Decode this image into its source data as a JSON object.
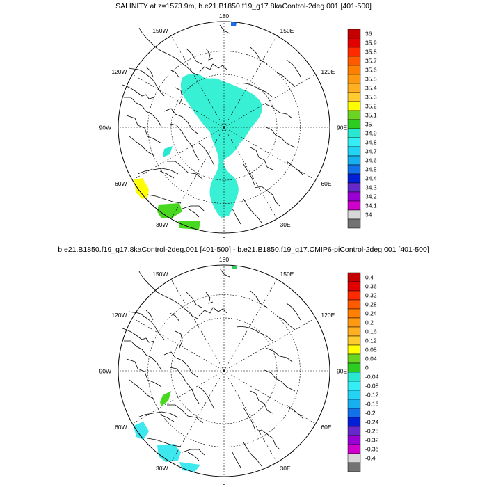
{
  "colors": {
    "land_outline": "#000000",
    "grid": "#000000",
    "ocean": "#ffffff"
  },
  "plots": [
    {
      "id": "top",
      "title": "SALINITY at z=1573.9m, b.e21.B1850.f19_g17.8kaControl-2deg.001 [401-500]",
      "lon_labels": [
        "180",
        "150E",
        "120E",
        "90E",
        "60E",
        "30E",
        "0",
        "30W",
        "60W",
        "90W",
        "120W",
        "150W"
      ],
      "colorbar": {
        "labels": [
          "36",
          "35.9",
          "35.8",
          "35.7",
          "35.6",
          "35.5",
          "35.4",
          "35.3",
          "35.2",
          "35.1",
          "35",
          "34.9",
          "34.8",
          "34.7",
          "34.6",
          "34.5",
          "34.4",
          "34.3",
          "34.2",
          "34.1",
          "34"
        ],
        "colors": [
          "#c40000",
          "#e30000",
          "#ff2a00",
          "#ff5a00",
          "#ff7f00",
          "#ff9a10",
          "#ffb020",
          "#ffcc30",
          "#ffff00",
          "#6ad422",
          "#2ccc20",
          "#29e8d2",
          "#34eef5",
          "#22d3f4",
          "#16b0ef",
          "#1270e8",
          "#0020d8",
          "#6628c8",
          "#9a00d4",
          "#d000cc",
          "#d8d8d8",
          "#737373"
        ]
      },
      "patches": [
        {
          "value": "35",
          "color": "#38f0d3",
          "role": "main-cyan"
        },
        {
          "value": "35.3",
          "color": "#ffff00",
          "role": "labrador"
        },
        {
          "value": "35.2",
          "color": "#48d820",
          "role": "south-green"
        },
        {
          "value": "34.7",
          "color": "#29e8d2",
          "role": "baffin-small"
        },
        {
          "value": "34.5",
          "color": "#1a70e8",
          "role": "top-blue"
        }
      ]
    },
    {
      "id": "bottom",
      "title": "b.e21.B1850.f19_g17.8kaControl-2deg.001 [401-500] - b.e21.B1850.f19_g17.CMIP6-piControl-2deg.001 [401-500]",
      "lon_labels": [
        "180",
        "150E",
        "120E",
        "90E",
        "60E",
        "30E",
        "0",
        "30W",
        "60W",
        "90W",
        "120W",
        "150W"
      ],
      "colorbar": {
        "labels": [
          "0.4",
          "0.36",
          "0.32",
          "0.28",
          "0.24",
          "0.2",
          "0.16",
          "0.12",
          "0.08",
          "0.04",
          "0",
          "-0.04",
          "-0.08",
          "-0.12",
          "-0.16",
          "-0.2",
          "-0.24",
          "-0.28",
          "-0.32",
          "-0.36",
          "-0.4"
        ],
        "colors": [
          "#c40000",
          "#e30000",
          "#ff2a00",
          "#ff5a00",
          "#ff7f00",
          "#ff9a10",
          "#ffb020",
          "#ffcc30",
          "#ffff00",
          "#6ad422",
          "#2ccc20",
          "#29e8d2",
          "#34eef5",
          "#22d3f4",
          "#16b0ef",
          "#1270e8",
          "#0020d8",
          "#6628c8",
          "#9a00d4",
          "#d000cc",
          "#d8d8d8",
          "#737373"
        ]
      },
      "patches": [
        {
          "value": "-0.04",
          "color": "#38f0d3",
          "role": "main-cyan"
        },
        {
          "value": "0.04",
          "color": "#48d820",
          "role": "baffin-green"
        },
        {
          "value": "-0.08",
          "color": "#3de8ee",
          "role": "south-cyan"
        },
        {
          "value": "0",
          "color": "#2ccc60",
          "role": "top-green"
        }
      ]
    }
  ]
}
